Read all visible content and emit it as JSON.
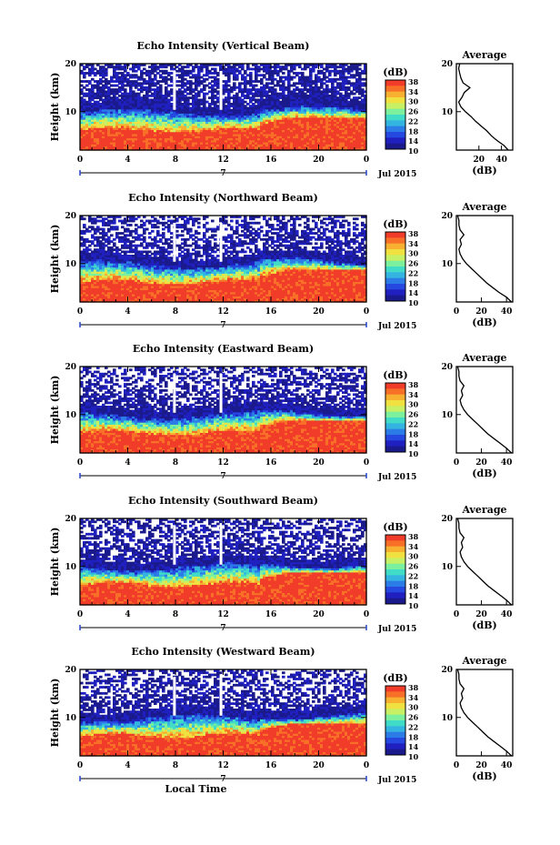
{
  "figure": {
    "bottom_xlabel": "Local Time",
    "colorbar_unit": "(dB)",
    "colorbar_ticks": [
      "38",
      "34",
      "30",
      "26",
      "22",
      "18",
      "14",
      "10"
    ],
    "colorscale": [
      "#1a1a8c",
      "#2020c0",
      "#2448e0",
      "#2c7ce8",
      "#34b4e0",
      "#40dcc8",
      "#7cf09c",
      "#c8f064",
      "#f0e040",
      "#f8b030",
      "#f87028",
      "#f03c28"
    ],
    "date_label": "Jul 2015",
    "date_tick_label": "7",
    "ylabel": "Height (km)",
    "profile_xlabel": "(dB)",
    "profile_title": "Average"
  },
  "chart_data": [
    {
      "type": "heatmap",
      "title": "Echo Intensity (Vertical Beam)",
      "xlabel": "",
      "ylabel": "Height (km)",
      "x_ticks": [
        "0",
        "4",
        "8",
        "12",
        "16",
        "20",
        "0"
      ],
      "y_ticks": [
        "20",
        "10"
      ],
      "xlim": [
        0,
        24
      ],
      "ylim": [
        2,
        20
      ],
      "colorbar": {
        "label": "(dB)",
        "ticks": [
          38,
          34,
          30,
          26,
          22,
          18,
          14,
          10
        ],
        "range": [
          10,
          38
        ]
      },
      "date": "Jul 2015",
      "profile": {
        "title": "Average",
        "xlabel": "(dB)",
        "x_ticks": [
          "20",
          "40"
        ],
        "xlim": [
          0,
          50
        ],
        "height": [
          2,
          3,
          4,
          5,
          6,
          7,
          8,
          9,
          10,
          11,
          12,
          13,
          14,
          15,
          16,
          17,
          18,
          19,
          20
        ],
        "value": [
          46,
          42,
          36,
          31,
          27,
          22,
          17,
          13,
          8,
          4,
          2,
          5,
          7,
          12,
          6,
          4,
          3,
          2,
          3
        ]
      }
    },
    {
      "type": "heatmap",
      "title": "Echo Intensity (Northward Beam)",
      "xlabel": "",
      "ylabel": "Height (km)",
      "x_ticks": [
        "0",
        "4",
        "8",
        "12",
        "16",
        "20",
        "0"
      ],
      "y_ticks": [
        "20",
        "10"
      ],
      "xlim": [
        0,
        24
      ],
      "ylim": [
        2,
        20
      ],
      "colorbar": {
        "label": "(dB)",
        "ticks": [
          38,
          34,
          30,
          26,
          22,
          18,
          14,
          10
        ],
        "range": [
          10,
          38
        ]
      },
      "date": "Jul 2015",
      "profile": {
        "title": "Average",
        "xlabel": "(dB)",
        "x_ticks": [
          "0",
          "20",
          "40"
        ],
        "xlim": [
          0,
          45
        ],
        "height": [
          2,
          3,
          4,
          5,
          6,
          7,
          8,
          9,
          10,
          11,
          12,
          13,
          14,
          15,
          16,
          17,
          18,
          19,
          20
        ],
        "value": [
          44,
          40,
          34,
          29,
          24,
          20,
          16,
          12,
          8,
          5,
          3,
          2,
          4,
          3,
          6,
          3,
          2,
          2,
          1
        ]
      }
    },
    {
      "type": "heatmap",
      "title": "Echo Intensity (Eastward Beam)",
      "xlabel": "",
      "ylabel": "Height (km)",
      "x_ticks": [
        "0",
        "4",
        "8",
        "12",
        "16",
        "20",
        "0"
      ],
      "y_ticks": [
        "20",
        "10"
      ],
      "xlim": [
        0,
        24
      ],
      "ylim": [
        2,
        20
      ],
      "colorbar": {
        "label": "(dB)",
        "ticks": [
          38,
          34,
          30,
          26,
          22,
          18,
          14,
          10
        ],
        "range": [
          10,
          38
        ]
      },
      "date": "Jul 2015",
      "profile": {
        "title": "Average",
        "xlabel": "(dB)",
        "x_ticks": [
          "0",
          "20",
          "40"
        ],
        "xlim": [
          0,
          45
        ],
        "height": [
          2,
          3,
          4,
          5,
          6,
          7,
          8,
          9,
          10,
          11,
          12,
          13,
          14,
          15,
          16,
          17,
          18,
          19,
          20
        ],
        "value": [
          44,
          40,
          35,
          30,
          25,
          21,
          17,
          13,
          9,
          6,
          4,
          3,
          5,
          4,
          6,
          3,
          2,
          2,
          1
        ]
      }
    },
    {
      "type": "heatmap",
      "title": "Echo Intensity (Southward Beam)",
      "xlabel": "",
      "ylabel": "Height (km)",
      "x_ticks": [
        "0",
        "4",
        "8",
        "12",
        "16",
        "20",
        "0"
      ],
      "y_ticks": [
        "20",
        "10"
      ],
      "xlim": [
        0,
        24
      ],
      "ylim": [
        2,
        20
      ],
      "colorbar": {
        "label": "(dB)",
        "ticks": [
          38,
          34,
          30,
          26,
          22,
          18,
          14,
          10
        ],
        "range": [
          10,
          38
        ]
      },
      "date": "Jul 2015",
      "profile": {
        "title": "Average",
        "xlabel": "(dB)",
        "x_ticks": [
          "0",
          "20",
          "40"
        ],
        "xlim": [
          0,
          45
        ],
        "height": [
          2,
          3,
          4,
          5,
          6,
          7,
          8,
          9,
          10,
          11,
          12,
          13,
          14,
          15,
          16,
          17,
          18,
          19,
          20
        ],
        "value": [
          44,
          40,
          35,
          30,
          25,
          21,
          17,
          13,
          9,
          6,
          4,
          3,
          5,
          4,
          6,
          3,
          2,
          2,
          1
        ]
      }
    },
    {
      "type": "heatmap",
      "title": "Echo Intensity (Westward Beam)",
      "xlabel": "Local Time",
      "ylabel": "Height (km)",
      "x_ticks": [
        "0",
        "4",
        "8",
        "12",
        "16",
        "20",
        "0"
      ],
      "y_ticks": [
        "20",
        "10"
      ],
      "xlim": [
        0,
        24
      ],
      "ylim": [
        2,
        20
      ],
      "colorbar": {
        "label": "(dB)",
        "ticks": [
          38,
          34,
          30,
          26,
          22,
          18,
          14,
          10
        ],
        "range": [
          10,
          38
        ]
      },
      "date": "Jul 2015",
      "profile": {
        "title": "Average",
        "xlabel": "(dB)",
        "x_ticks": [
          "0",
          "20",
          "40"
        ],
        "xlim": [
          0,
          45
        ],
        "height": [
          2,
          3,
          4,
          5,
          6,
          7,
          8,
          9,
          10,
          11,
          12,
          13,
          14,
          15,
          16,
          17,
          18,
          19,
          20
        ],
        "value": [
          44,
          40,
          35,
          30,
          25,
          21,
          17,
          13,
          9,
          6,
          4,
          3,
          5,
          4,
          6,
          3,
          2,
          2,
          1
        ]
      }
    }
  ]
}
